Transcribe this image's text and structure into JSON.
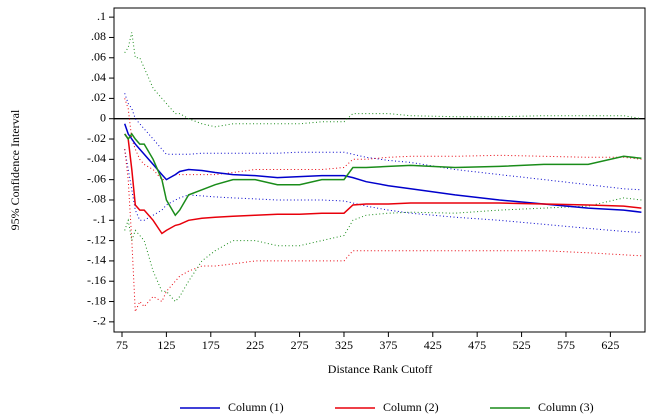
{
  "chart_data": {
    "type": "line",
    "y_label": "95% Confidence Interval",
    "x_label": "Distance Rank Cutoff",
    "x": [
      78,
      82,
      86,
      90,
      95,
      100,
      110,
      120,
      125,
      135,
      140,
      150,
      165,
      180,
      200,
      225,
      250,
      275,
      300,
      325,
      335,
      350,
      375,
      400,
      450,
      500,
      550,
      600,
      640,
      660
    ],
    "series": [
      {
        "name": "Column (1)",
        "color": "#0000cc",
        "values": [
          -0.005,
          -0.015,
          -0.02,
          -0.025,
          -0.03,
          -0.035,
          -0.045,
          -0.055,
          -0.06,
          -0.055,
          -0.052,
          -0.05,
          -0.051,
          -0.053,
          -0.055,
          -0.056,
          -0.058,
          -0.057,
          -0.056,
          -0.056,
          -0.058,
          -0.062,
          -0.066,
          -0.069,
          -0.075,
          -0.08,
          -0.084,
          -0.088,
          -0.09,
          -0.092
        ],
        "lower": [
          -0.03,
          -0.05,
          -0.07,
          -0.09,
          -0.1,
          -0.1,
          -0.095,
          -0.09,
          -0.085,
          -0.08,
          -0.078,
          -0.075,
          -0.076,
          -0.077,
          -0.078,
          -0.079,
          -0.08,
          -0.08,
          -0.08,
          -0.081,
          -0.083,
          -0.086,
          -0.09,
          -0.093,
          -0.097,
          -0.1,
          -0.104,
          -0.108,
          -0.111,
          -0.112
        ],
        "upper": [
          0.025,
          0.015,
          0.01,
          0.0,
          -0.005,
          -0.01,
          -0.02,
          -0.03,
          -0.035,
          -0.035,
          -0.035,
          -0.035,
          -0.034,
          -0.034,
          -0.034,
          -0.034,
          -0.034,
          -0.033,
          -0.033,
          -0.033,
          -0.035,
          -0.038,
          -0.041,
          -0.043,
          -0.05,
          -0.055,
          -0.06,
          -0.065,
          -0.069,
          -0.07
        ]
      },
      {
        "name": "Column (2)",
        "color": "#e8000b",
        "values": [
          -0.015,
          -0.02,
          -0.05,
          -0.085,
          -0.09,
          -0.09,
          -0.1,
          -0.113,
          -0.11,
          -0.105,
          -0.104,
          -0.1,
          -0.098,
          -0.097,
          -0.096,
          -0.095,
          -0.094,
          -0.094,
          -0.093,
          -0.093,
          -0.085,
          -0.084,
          -0.084,
          -0.083,
          -0.083,
          -0.083,
          -0.084,
          -0.085,
          -0.086,
          -0.088
        ],
        "lower": [
          -0.03,
          -0.06,
          -0.12,
          -0.19,
          -0.18,
          -0.185,
          -0.175,
          -0.18,
          -0.17,
          -0.16,
          -0.155,
          -0.15,
          -0.145,
          -0.145,
          -0.143,
          -0.14,
          -0.14,
          -0.14,
          -0.14,
          -0.14,
          -0.13,
          -0.13,
          -0.13,
          -0.13,
          -0.13,
          -0.13,
          -0.13,
          -0.132,
          -0.134,
          -0.135
        ],
        "upper": [
          0.02,
          0.01,
          -0.02,
          -0.03,
          -0.04,
          -0.045,
          -0.05,
          -0.06,
          -0.06,
          -0.055,
          -0.055,
          -0.055,
          -0.055,
          -0.055,
          -0.053,
          -0.05,
          -0.05,
          -0.05,
          -0.05,
          -0.048,
          -0.04,
          -0.04,
          -0.038,
          -0.037,
          -0.037,
          -0.036,
          -0.037,
          -0.038,
          -0.038,
          -0.04
        ]
      },
      {
        "name": "Column (3)",
        "color": "#1a8c1a",
        "values": [
          -0.015,
          -0.02,
          -0.015,
          -0.02,
          -0.025,
          -0.025,
          -0.04,
          -0.06,
          -0.08,
          -0.095,
          -0.09,
          -0.075,
          -0.07,
          -0.065,
          -0.06,
          -0.06,
          -0.065,
          -0.065,
          -0.06,
          -0.06,
          -0.048,
          -0.048,
          -0.047,
          -0.046,
          -0.048,
          -0.047,
          -0.045,
          -0.045,
          -0.037,
          -0.039
        ],
        "lower": [
          -0.11,
          -0.1,
          -0.12,
          -0.11,
          -0.115,
          -0.12,
          -0.15,
          -0.17,
          -0.17,
          -0.18,
          -0.175,
          -0.16,
          -0.14,
          -0.13,
          -0.12,
          -0.12,
          -0.125,
          -0.125,
          -0.12,
          -0.115,
          -0.1,
          -0.095,
          -0.093,
          -0.092,
          -0.093,
          -0.09,
          -0.088,
          -0.086,
          -0.078,
          -0.08
        ],
        "upper": [
          0.065,
          0.07,
          0.085,
          0.06,
          0.06,
          0.05,
          0.03,
          0.02,
          0.015,
          0.005,
          0.005,
          0.0,
          -0.005,
          -0.008,
          -0.005,
          -0.005,
          -0.005,
          -0.005,
          -0.003,
          -0.003,
          0.005,
          0.005,
          0.005,
          0.003,
          0.002,
          0.002,
          0.003,
          0.003,
          0.003,
          0.0
        ]
      }
    ],
    "xlim": [
      66,
      664
    ],
    "ylim": [
      -0.21,
      0.109
    ],
    "xticks": [
      75,
      125,
      175,
      225,
      275,
      325,
      375,
      425,
      475,
      525,
      575,
      625
    ],
    "yticks": [
      {
        "value": 0.1,
        "label": ".1"
      },
      {
        "value": 0.08,
        "label": ".08"
      },
      {
        "value": 0.06,
        "label": ".06"
      },
      {
        "value": 0.04,
        "label": ".04"
      },
      {
        "value": 0.02,
        "label": ".02"
      },
      0,
      {
        "value": -0.02,
        "label": "-.02"
      },
      {
        "value": -0.04,
        "label": "-.04"
      },
      {
        "value": -0.06,
        "label": "-.06"
      },
      {
        "value": -0.08,
        "label": "-.08"
      },
      {
        "value": -0.1,
        "label": "-.1"
      },
      {
        "value": -0.12,
        "label": "-.12"
      },
      {
        "value": -0.14,
        "label": "-.14"
      },
      {
        "value": -0.16,
        "label": "-.16"
      },
      {
        "value": -0.18,
        "label": "-.18"
      },
      {
        "value": -0.2,
        "label": "-.2"
      }
    ],
    "zero_line": true,
    "grid": false
  }
}
